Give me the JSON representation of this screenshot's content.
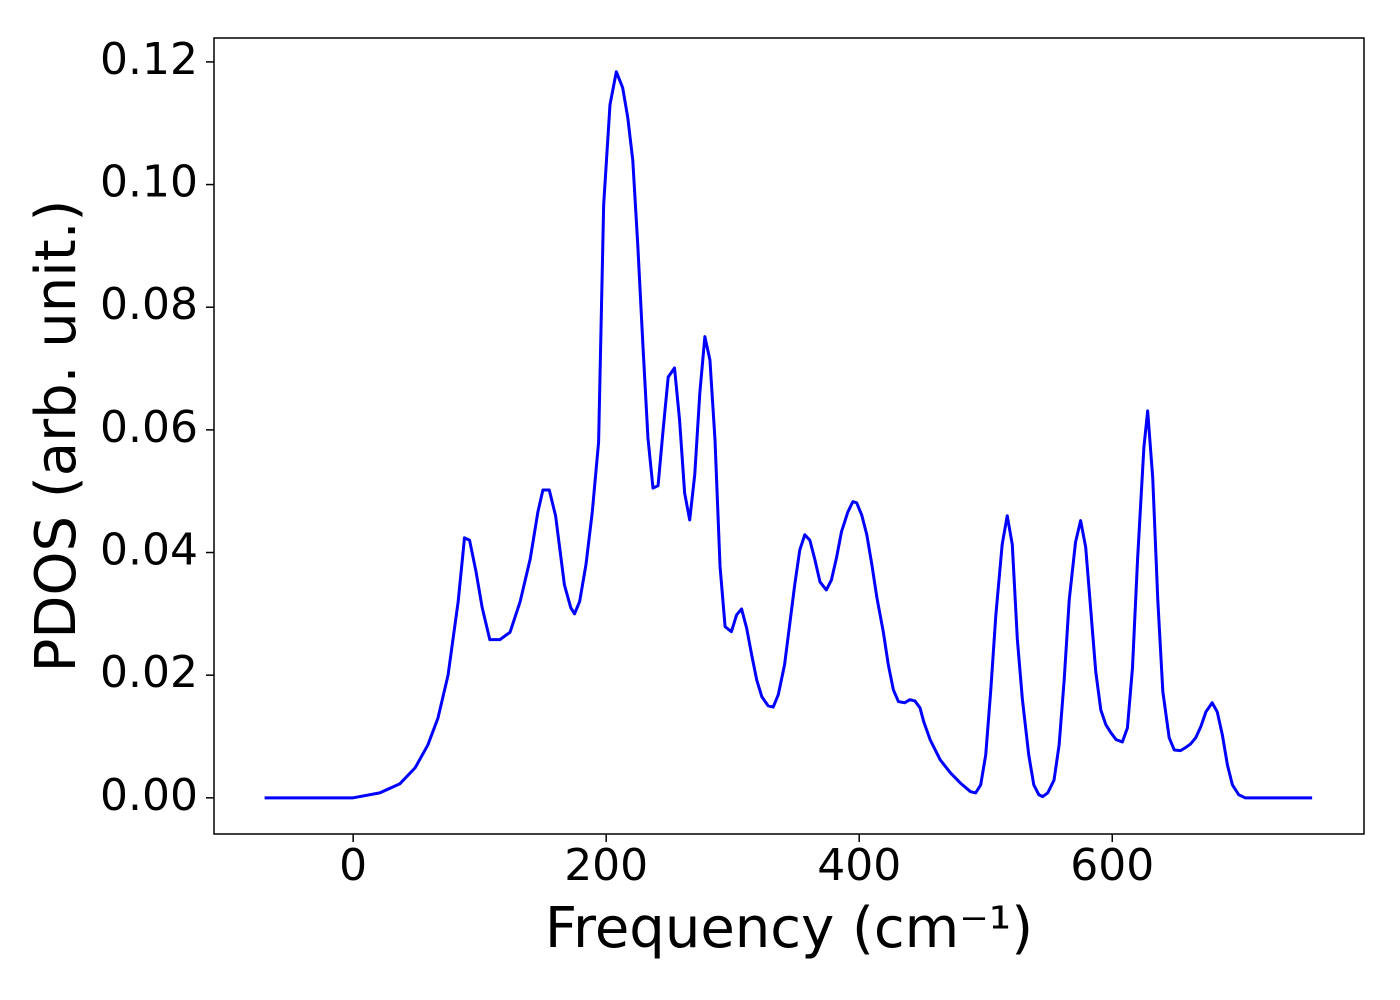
{
  "chart_data": {
    "type": "line",
    "xlabel": "Frequency (cm⁻¹)",
    "ylabel": "PDOS (arb. unit.)",
    "color": "#0000ff",
    "x": [
      -70,
      0,
      21,
      37,
      49,
      59,
      67,
      75,
      83,
      88,
      92,
      97,
      102,
      108,
      116,
      124,
      132,
      140,
      146,
      150,
      155,
      160,
      167,
      172,
      175,
      179,
      184,
      189,
      194,
      198,
      203,
      208,
      213,
      217,
      221,
      225,
      229,
      233,
      237,
      241,
      245,
      249,
      254,
      258,
      262,
      266,
      270,
      274,
      278,
      282,
      286,
      290,
      294,
      299,
      303,
      307,
      311,
      315,
      319,
      323,
      328,
      332,
      336,
      341,
      345,
      349,
      353,
      357,
      361,
      365,
      369,
      374,
      378,
      382,
      386,
      391,
      395,
      398,
      402,
      406,
      410,
      414,
      419,
      423,
      427,
      431,
      436,
      440,
      444,
      448,
      451,
      456,
      464,
      472,
      480,
      488,
      492,
      496,
      500,
      504,
      508,
      513,
      517,
      521,
      525,
      529,
      534,
      538,
      542,
      545,
      549,
      554,
      558,
      562,
      566,
      571,
      575,
      579,
      583,
      587,
      591,
      595,
      599,
      603,
      608,
      612,
      616,
      620,
      625,
      628,
      632,
      636,
      640,
      645,
      649,
      654,
      658,
      662,
      666,
      670,
      674,
      679,
      683,
      687,
      691,
      695,
      700,
      705,
      758
    ],
    "values": [
      0,
      0,
      0.0008,
      0.0023,
      0.0049,
      0.0086,
      0.013,
      0.02,
      0.032,
      0.0424,
      0.042,
      0.037,
      0.031,
      0.0258,
      0.0258,
      0.027,
      0.032,
      0.039,
      0.0466,
      0.0502,
      0.0502,
      0.046,
      0.0347,
      0.031,
      0.03,
      0.032,
      0.038,
      0.0466,
      0.058,
      0.0967,
      0.113,
      0.1184,
      0.1158,
      0.111,
      0.104,
      0.09,
      0.0739,
      0.0587,
      0.0505,
      0.0509,
      0.06,
      0.0686,
      0.0701,
      0.0616,
      0.0497,
      0.0453,
      0.0527,
      0.066,
      0.0752,
      0.0714,
      0.0584,
      0.0377,
      0.0279,
      0.0271,
      0.0298,
      0.0308,
      0.0277,
      0.0233,
      0.0192,
      0.0165,
      0.015,
      0.0148,
      0.0168,
      0.0217,
      0.0282,
      0.0347,
      0.0404,
      0.0429,
      0.042,
      0.0388,
      0.0352,
      0.0339,
      0.0355,
      0.0391,
      0.0434,
      0.0466,
      0.0483,
      0.0481,
      0.0461,
      0.0429,
      0.038,
      0.0326,
      0.0271,
      0.0217,
      0.0176,
      0.0157,
      0.0155,
      0.016,
      0.0158,
      0.0147,
      0.0124,
      0.0095,
      0.0062,
      0.0041,
      0.0024,
      0.001,
      0.0008,
      0.0021,
      0.007,
      0.0176,
      0.0298,
      0.0413,
      0.046,
      0.0413,
      0.0258,
      0.016,
      0.007,
      0.0021,
      0.0005,
      0.0002,
      0.0008,
      0.0029,
      0.0086,
      0.0192,
      0.0323,
      0.0417,
      0.0452,
      0.0409,
      0.0307,
      0.0205,
      0.0143,
      0.0119,
      0.0106,
      0.0095,
      0.0091,
      0.0114,
      0.0212,
      0.0388,
      0.0571,
      0.0631,
      0.0522,
      0.0323,
      0.0173,
      0.0098,
      0.0078,
      0.0077,
      0.0082,
      0.0088,
      0.0098,
      0.0116,
      0.014,
      0.0155,
      0.014,
      0.0103,
      0.0054,
      0.0021,
      0.0005,
      0,
      0
    ],
    "xlim": [
      -110,
      799
    ],
    "ylim": [
      -0.0059,
      0.1239
    ],
    "xticks": [
      0,
      200,
      400,
      600
    ],
    "yticks": [
      {
        "value": 0,
        "label": "0.00"
      },
      0.02,
      0.04,
      0.06,
      0.08,
      {
        "value": 0.1,
        "label": "0.10"
      },
      0.12
    ],
    "grid": false
  }
}
